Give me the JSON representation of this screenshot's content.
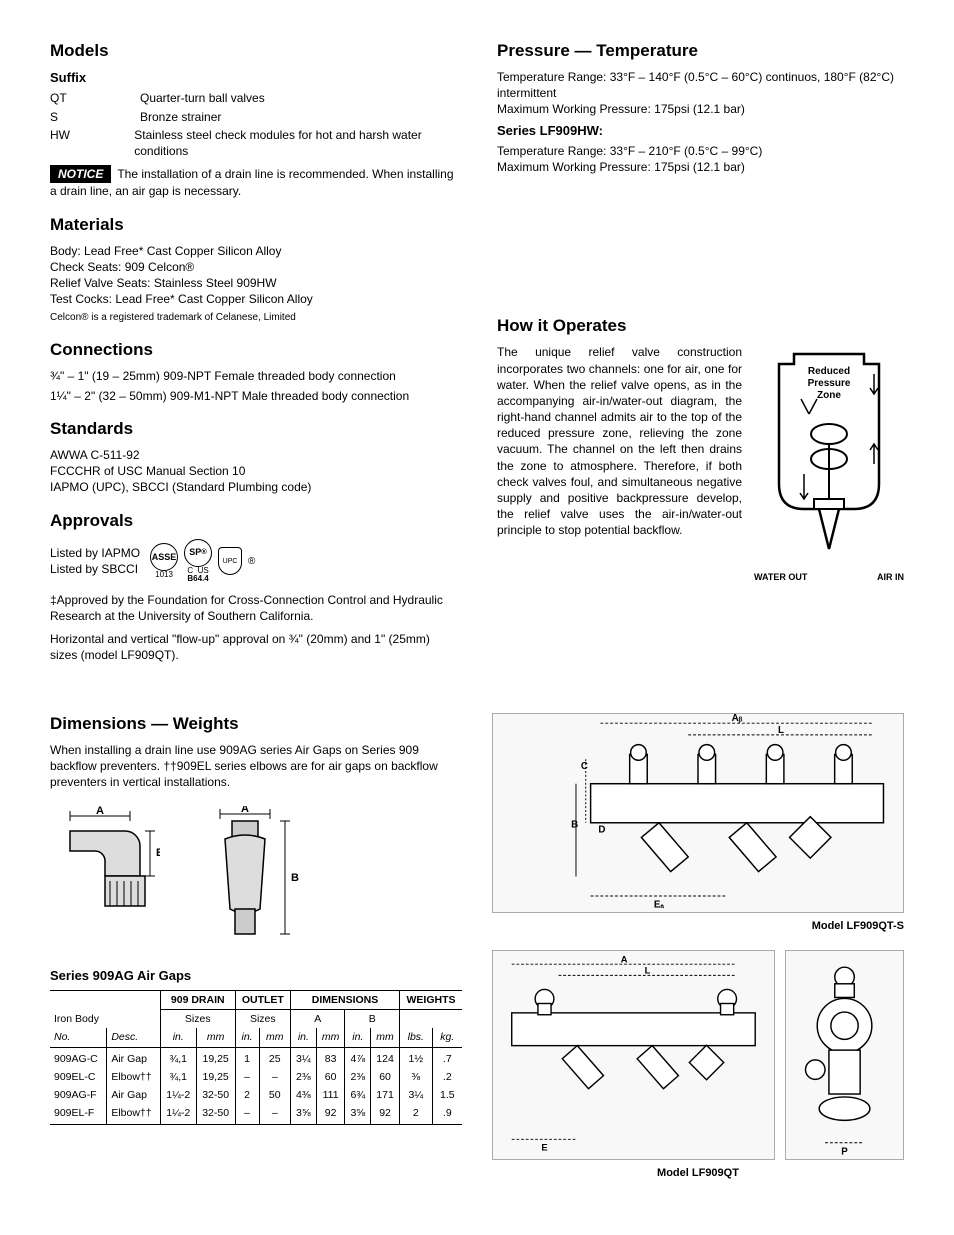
{
  "models": {
    "heading": "Models",
    "suffix_label": "Suffix",
    "rows": [
      {
        "code": "QT",
        "desc": "Quarter-turn ball valves"
      },
      {
        "code": "S",
        "desc": "Bronze strainer"
      },
      {
        "code": "HW",
        "desc": "Stainless steel check modules for hot and harsh water conditions"
      }
    ],
    "notice_label": "NOTICE",
    "notice_text": "The installation of a drain line is recommended. When installing a drain line, an air gap is necessary."
  },
  "materials": {
    "heading": "Materials",
    "lines": [
      "Body: Lead Free* Cast Copper Silicon Alloy",
      "Check Seats: 909 Celcon®",
      "Relief Valve Seats: Stainless Steel 909HW",
      "Test Cocks: Lead Free* Cast Copper Silicon Alloy"
    ],
    "footnote": "Celcon® is a registered trademark of Celanese, Limited"
  },
  "connections": {
    "heading": "Connections",
    "lines": [
      "¾\" – 1\" (19 – 25mm) 909-NPT Female threaded body connection",
      "1¼\" – 2\" (32 – 50mm) 909-M1-NPT Male threaded body connection"
    ]
  },
  "standards": {
    "heading": "Standards",
    "lines": [
      "AWWA C-511-92",
      "FCCCHR of USC Manual Section 10",
      "IAPMO (UPC), SBCCI (Standard Plumbing code)"
    ]
  },
  "approvals": {
    "heading": "Approvals",
    "lines": [
      "Listed by IAPMO",
      "Listed by SBCCI"
    ],
    "cert_labels": {
      "asse": "ASSE",
      "sp": "SP",
      "upc": "UPC",
      "num": "1013",
      "code": "B64.4",
      "c": "C",
      "us": "US",
      "reg": "®"
    },
    "para1": "‡Approved by the Foundation for Cross-Connection Control and Hydraulic Research at the University of Southern California.",
    "para2": "Horizontal and vertical \"flow-up\" approval on ¾\" (20mm) and 1\" (25mm) sizes (model LF909QT)."
  },
  "pressure_temp": {
    "heading": "Pressure — Temperature",
    "lines": [
      "Temperature Range: 33°F – 140°F (0.5°C – 60°C) continuos, 180°F (82°C) intermittent",
      "Maximum Working Pressure: 175psi (12.1 bar)"
    ],
    "series_label": "Series LF909HW:",
    "series_lines": [
      "Temperature Range: 33°F – 210°F (0.5°C – 99°C)",
      "Maximum Working Pressure: 175psi (12.1 bar)"
    ]
  },
  "operates": {
    "heading": "How it Operates",
    "text": "The unique relief valve construction incorporates two channels: one for air, one for water. When the relief valve opens, as in the accompanying air-in/water-out diagram, the right-hand channel admits air to the top of the reduced pressure zone, relieving the zone vacuum. The channel on the left then drains the zone to atmosphere. Therefore, if both check valves foul, and simultaneous negative supply and positive backpressure develop, the relief valve uses the air-in/water-out principle to stop potential backflow.",
    "diagram_labels": {
      "zone": "Reduced Pressure Zone",
      "out": "WATER OUT",
      "in": "AIR IN"
    }
  },
  "dimensions": {
    "heading": "Dimensions — Weights",
    "intro": "When installing a drain line use 909AG series Air Gaps on Series 909 backflow preventers. ††909EL series elbows are for air gaps on backflow preventers in vertical installations.",
    "img_labels": {
      "A": "A",
      "B": "B"
    },
    "table_title": "Series 909AG Air Gaps",
    "headers": {
      "drain": "909 DRAIN",
      "outlet": "OUTLET",
      "dims": "DIMENSIONS",
      "weights": "WEIGHTS",
      "iron_body": "Iron Body",
      "sizes": "Sizes",
      "A": "A",
      "B": "B",
      "no": "No.",
      "desc": "Desc.",
      "in": "in.",
      "mm": "mm",
      "lbs": "lbs.",
      "kg": "kg."
    },
    "rows": [
      {
        "no": "909AG-C",
        "desc": "Air Gap",
        "size_in": "¾,1",
        "size_mm": "19,25",
        "out_in": "1",
        "out_mm": "25",
        "A_in": "3¼",
        "A_mm": "83",
        "B_in": "4⅞",
        "B_mm": "124",
        "lbs": "1½",
        "kg": ".7"
      },
      {
        "no": "909EL-C",
        "desc": "Elbow††",
        "size_in": "¾,1",
        "size_mm": "19,25",
        "out_in": "–",
        "out_mm": "–",
        "A_in": "2⅜",
        "A_mm": "60",
        "B_in": "2⅜",
        "B_mm": "60",
        "lbs": "⅜",
        "kg": ".2"
      },
      {
        "no": "909AG-F",
        "desc": "Air Gap",
        "size_in": "1¼-2",
        "size_mm": "32-50",
        "out_in": "2",
        "out_mm": "50",
        "A_in": "4⅜",
        "A_mm": "111",
        "B_in": "6¾",
        "B_mm": "171",
        "lbs": "3¼",
        "kg": "1.5"
      },
      {
        "no": "909EL-F",
        "desc": "Elbow††",
        "size_in": "1¼-2",
        "size_mm": "32-50",
        "out_in": "–",
        "out_mm": "–",
        "A_in": "3⅝",
        "A_mm": "92",
        "B_in": "3⅝",
        "B_mm": "92",
        "lbs": "2",
        "kg": ".9"
      }
    ],
    "model_labels": {
      "qts": "Model LF909QT-S",
      "qt": "Model LF909QT"
    },
    "dim_labels": {
      "A": "A",
      "L": "L",
      "C": "C",
      "B": "B",
      "D": "D",
      "E": "E",
      "EA": "Eₐ",
      "AB": "Aᵦ",
      "P": "P"
    }
  }
}
